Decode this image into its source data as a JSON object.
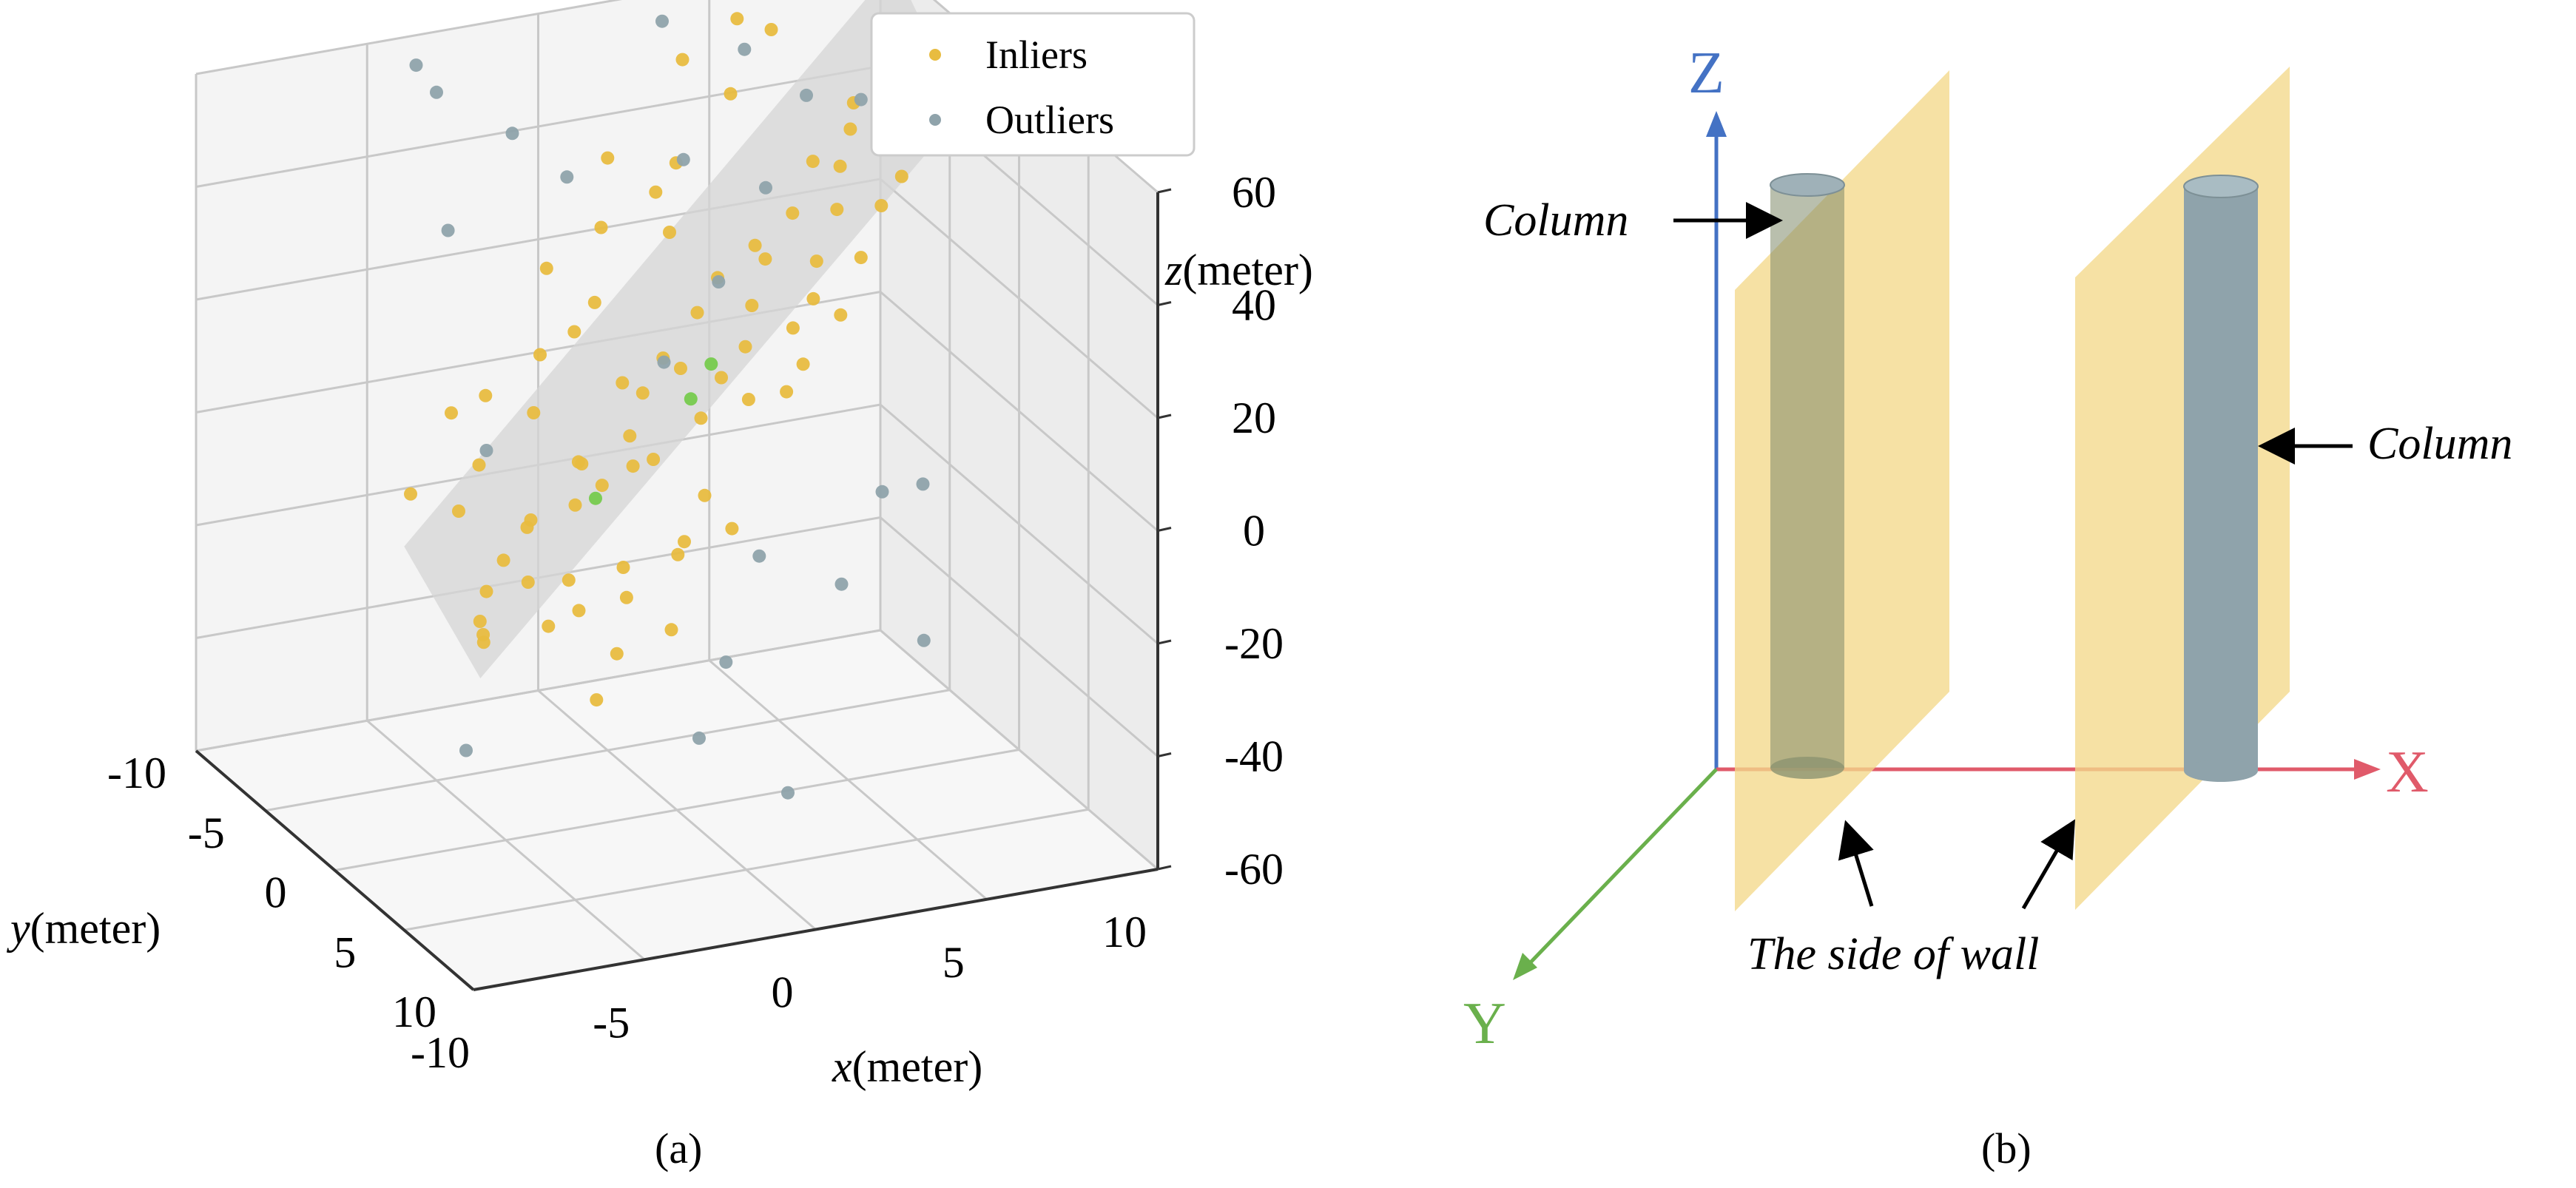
{
  "panel_a_label": "(a)",
  "panel_b_label": "(b)",
  "chart_data": {
    "type": "scatter",
    "projection": "3d",
    "xlabel": "(meter)",
    "xlabel_var": "x",
    "ylabel": "(meter)",
    "ylabel_var": "y",
    "zlabel": "(meter)",
    "zlabel_var": "z",
    "xlim": [
      -10,
      10
    ],
    "ylim": [
      -10,
      10
    ],
    "zlim": [
      -60,
      60
    ],
    "x_ticks": [
      "-10",
      "-5",
      "0",
      "5",
      "10"
    ],
    "y_ticks": [
      "-10",
      "-5",
      "0",
      "5",
      "10"
    ],
    "z_ticks": [
      "60",
      "40",
      "20",
      "0",
      "-20",
      "-40",
      "-60"
    ],
    "grid": true,
    "legend_position": "top-center",
    "fitted_plane": true,
    "colors": {
      "inliers": "#e8bc40",
      "outliers": "#8fa3ab",
      "sample": "#7ccc55",
      "plane": "#d6d6d6"
    },
    "series": [
      {
        "name": "Inliers",
        "color": "#e8bc40",
        "points": [
          [
            -9.5,
            9.5,
            0
          ],
          [
            -9,
            8,
            0
          ],
          [
            -8.5,
            7,
            -5
          ],
          [
            -8,
            9,
            8
          ],
          [
            -7.5,
            6,
            5
          ],
          [
            -7,
            8,
            -3
          ],
          [
            -6.5,
            5.5,
            10
          ],
          [
            -6,
            7,
            2
          ],
          [
            -6,
            4,
            5
          ],
          [
            -5.5,
            6.5,
            -5
          ],
          [
            -5,
            5,
            10
          ],
          [
            -4.5,
            4,
            15
          ],
          [
            -4,
            6,
            0
          ],
          [
            -4,
            3,
            12
          ],
          [
            -3.5,
            5,
            -8
          ],
          [
            -3,
            4,
            18
          ],
          [
            -3,
            2,
            5
          ],
          [
            -2.5,
            3,
            10
          ],
          [
            -2,
            5,
            -2
          ],
          [
            -2,
            1,
            20
          ],
          [
            -1.5,
            2,
            8
          ],
          [
            -1,
            3,
            -5
          ],
          [
            -1,
            0,
            15
          ],
          [
            -0.5,
            1.5,
            22
          ],
          [
            0,
            2,
            0
          ],
          [
            0,
            -1,
            18
          ],
          [
            0.5,
            0.5,
            10
          ],
          [
            1,
            -1,
            25
          ],
          [
            1,
            1.5,
            -8
          ],
          [
            1.5,
            -0.5,
            14
          ],
          [
            2,
            0,
            20
          ],
          [
            2,
            -2,
            28
          ],
          [
            2.5,
            -1,
            8
          ],
          [
            3,
            -2,
            22
          ],
          [
            3,
            0.5,
            12
          ],
          [
            3.5,
            -3,
            30
          ],
          [
            4,
            -1.5,
            18
          ],
          [
            4,
            -3.5,
            26
          ],
          [
            4.5,
            -2,
            10
          ],
          [
            5,
            -4,
            32
          ],
          [
            5,
            -2.5,
            20
          ],
          [
            5.5,
            -3.5,
            24
          ],
          [
            6,
            -5,
            38
          ],
          [
            6,
            -3,
            15
          ],
          [
            6.5,
            -4.5,
            30
          ],
          [
            7,
            -5.5,
            35
          ],
          [
            7,
            -4,
            22
          ],
          [
            7.5,
            -6,
            40
          ],
          [
            8,
            -5,
            28
          ],
          [
            8,
            -7,
            42
          ],
          [
            8.5,
            -6.5,
            36
          ],
          [
            9,
            -7.5,
            45
          ],
          [
            9,
            -6,
            30
          ],
          [
            9.5,
            -8,
            48
          ],
          [
            -7,
            3,
            15
          ],
          [
            -5,
            2,
            20
          ],
          [
            -2,
            -1,
            30
          ],
          [
            1,
            -4,
            40
          ],
          [
            4,
            -6,
            50
          ],
          [
            -8,
            4,
            10
          ],
          [
            -6,
            1,
            22
          ],
          [
            -3,
            -2,
            35
          ],
          [
            0,
            -5,
            45
          ],
          [
            3,
            -7,
            55
          ],
          [
            -9,
            3,
            12
          ],
          [
            -4,
            0,
            25
          ],
          [
            2,
            -5,
            42
          ],
          [
            5,
            -8,
            58
          ],
          [
            -1,
            -3,
            38
          ],
          [
            6,
            -8,
            55
          ],
          [
            8,
            -9,
            60
          ],
          [
            -7,
            1,
            20
          ],
          [
            -3,
            0,
            28
          ],
          [
            1,
            -3,
            35
          ],
          [
            -5,
            8,
            -10
          ],
          [
            -8,
            6,
            0
          ],
          [
            -6,
            9,
            -15
          ],
          [
            -3,
            7,
            -10
          ]
        ]
      },
      {
        "name": "Outliers",
        "color": "#8fa3ab",
        "points": [
          [
            -8,
            6,
            25
          ],
          [
            -7.5,
            2,
            55
          ],
          [
            -6,
            -4,
            70
          ],
          [
            -4,
            -2,
            60
          ],
          [
            -3,
            9,
            -25
          ],
          [
            -2,
            4,
            30
          ],
          [
            -1,
            6,
            -20
          ],
          [
            0,
            3,
            40
          ],
          [
            1,
            -2,
            50
          ],
          [
            2,
            1,
            -15
          ],
          [
            3,
            -1,
            45
          ],
          [
            4,
            2,
            -20
          ],
          [
            5,
            -3,
            55
          ],
          [
            6,
            0,
            -10
          ],
          [
            7,
            -4,
            50
          ],
          [
            8,
            -2,
            -15
          ],
          [
            9,
            -6,
            65
          ],
          [
            -5,
            -5,
            62
          ],
          [
            2,
            -6,
            65
          ],
          [
            -9,
            7,
            -25
          ],
          [
            0,
            8,
            -40
          ],
          [
            4,
            -5,
            60
          ],
          [
            7,
            -8,
            68
          ],
          [
            -2,
            -3,
            48
          ],
          [
            6,
            3,
            -30
          ]
        ]
      }
    ],
    "sample_points": [
      [
        -4,
        4,
        8
      ],
      [
        0,
        1,
        15
      ],
      [
        1,
        0,
        18
      ]
    ]
  },
  "diagram": {
    "axis_x_label": "X",
    "axis_y_label": "Y",
    "axis_z_label": "Z",
    "column_label_left": "Column",
    "column_label_right": "Column",
    "wall_label": "The side of wall",
    "colors": {
      "x_axis": "#e05a6a",
      "y_axis": "#6ab04c",
      "z_axis": "#4472c4",
      "wall": "#f3d98a",
      "column": "#8fa3ab"
    }
  }
}
